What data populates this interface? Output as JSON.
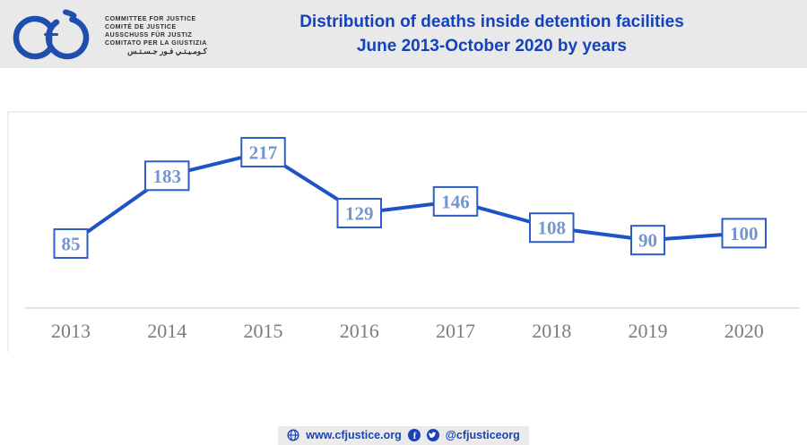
{
  "header": {
    "logo": {
      "org_lines": [
        "COMMITTEE FOR JUSTICE",
        "COMITÉ DE JUSTICE",
        "AUSSCHUSS FÜR JUSTIZ",
        "COMITATO PER LA GIUSTIZIA",
        "كـومـيـتـي فـور جـسـتـس"
      ]
    },
    "title_line1": "Distribution of deaths inside detention facilities",
    "title_line2": "June 2013-October 2020 by years"
  },
  "chart_data": {
    "type": "line",
    "title": "Distribution of deaths inside detention facilities June 2013-October 2020 by years",
    "categories": [
      "2013",
      "2014",
      "2015",
      "2016",
      "2017",
      "2018",
      "2019",
      "2020"
    ],
    "values": [
      85,
      183,
      217,
      129,
      146,
      108,
      90,
      100
    ],
    "xlabel": "",
    "ylabel": "",
    "ylim": [
      0,
      280
    ],
    "grid": false,
    "legend": false,
    "data_labels": true,
    "data_label_style": "boxed",
    "colors": {
      "line": "#1d53c4",
      "box_border": "#2e5dc6",
      "label_text": "#7496ce",
      "axis": "#d8d8d8",
      "tick": "#7c7c7c"
    }
  },
  "footer": {
    "website": "www.cfjustice.org",
    "facebook_letter": "f",
    "social_handle": "@cfjusticeorg"
  },
  "colors": {
    "header_bg": "#e9e9e9",
    "title_blue": "#1442bd",
    "logo_blue": "#1e4fae",
    "footer_blue": "#1b43b8"
  }
}
